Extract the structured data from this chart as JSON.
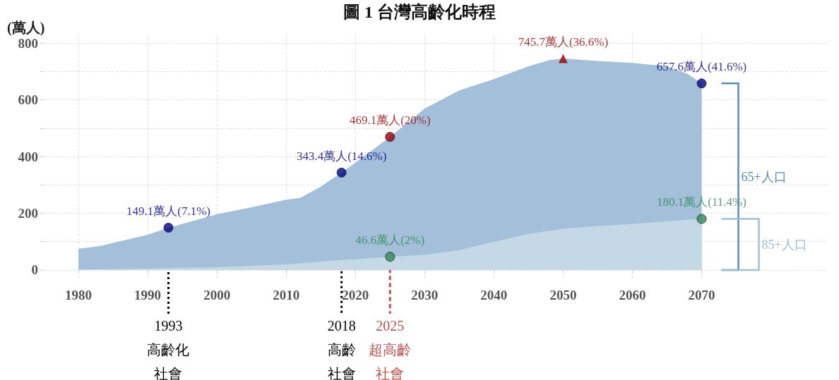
{
  "chart_data": {
    "type": "area",
    "title": "圖 1 台灣高齡化時程",
    "ylabel": "(萬人)",
    "xlim": [
      1975,
      2088
    ],
    "xticks": [
      1980,
      1990,
      2000,
      2010,
      2020,
      2030,
      2040,
      2050,
      2060,
      2070
    ],
    "ylim": [
      -30,
      830
    ],
    "yticks": [
      0,
      {
        "value": 100,
        "label": null
      },
      200,
      {
        "value": 300,
        "label": null
      },
      400,
      {
        "value": 500,
        "label": null
      },
      600,
      {
        "value": 700,
        "label": null
      },
      800
    ],
    "grid": true,
    "marker": "none",
    "series": [
      {
        "color": "#a3bfd9",
        "x": [
          1980,
          1983,
          1990,
          1993,
          2000,
          2005,
          2010,
          2012,
          2015,
          2018,
          2020,
          2025,
          2030,
          2035,
          2040,
          2045,
          2048,
          2050,
          2055,
          2060,
          2065,
          2068,
          2070
        ],
        "values": [
          75,
          84,
          124,
          149.1,
          196,
          221,
          248,
          254,
          294,
          343.4,
          378,
          469.1,
          569,
          633,
          673,
          718,
          740,
          745.7,
          737,
          730,
          718,
          691,
          657.6
        ]
      },
      {
        "color": "#c5d8e6",
        "x": [
          1980,
          1990,
          2000,
          2010,
          2018,
          2020,
          2025,
          2030,
          2035,
          2040,
          2045,
          2050,
          2055,
          2060,
          2065,
          2070
        ],
        "values": [
          2,
          5,
          10,
          20,
          35,
          38,
          46.6,
          53,
          70,
          99,
          127,
          145,
          155,
          162,
          172,
          180.1
        ]
      },
      {
        "type": "scatter",
        "color": "#00008b",
        "marker": "circle",
        "x": [
          1993,
          2018,
          2070
        ],
        "values": [
          149.1,
          343.4,
          657.6
        ],
        "value_labels": [
          "149.1萬人(7.1%)",
          "343.4萬人(14.6%)",
          "657.6萬人(41.6%)"
        ]
      },
      {
        "type": "scatter",
        "color": "#9b0000",
        "marker": "circle",
        "x": [
          2025
        ],
        "values": [
          469.1
        ],
        "value_labels": [
          "469.1萬人(20%)"
        ]
      },
      {
        "type": "scatter",
        "color": "#9b0000",
        "marker": "triangle",
        "x": [
          2050
        ],
        "values": [
          745.7
        ],
        "value_labels": [
          "745.7萬人(36.6%)"
        ]
      },
      {
        "type": "scatter",
        "color": "#2e8b57",
        "marker": "circle",
        "x": [
          2025,
          2070
        ],
        "values": [
          46.6,
          180.1
        ],
        "value_labels": [
          "46.6萬人(2%)",
          "180.1萬人(11.4%)"
        ]
      }
    ],
    "ref_lines": [
      {
        "axis": "x",
        "value": 1993,
        "label": "1993高齡化社會",
        "color": "#000000",
        "line_style": "dotted"
      },
      {
        "axis": "x",
        "value": 2018,
        "label": "2018高齡社會",
        "color": "#000000",
        "line_style": "dotted"
      },
      {
        "axis": "x",
        "value": 2025,
        "label": "2025超高齡社會",
        "color": "#c0504d",
        "line_style": "dashed"
      }
    ],
    "annotations": [
      "65+人口",
      "85+人口"
    ]
  }
}
